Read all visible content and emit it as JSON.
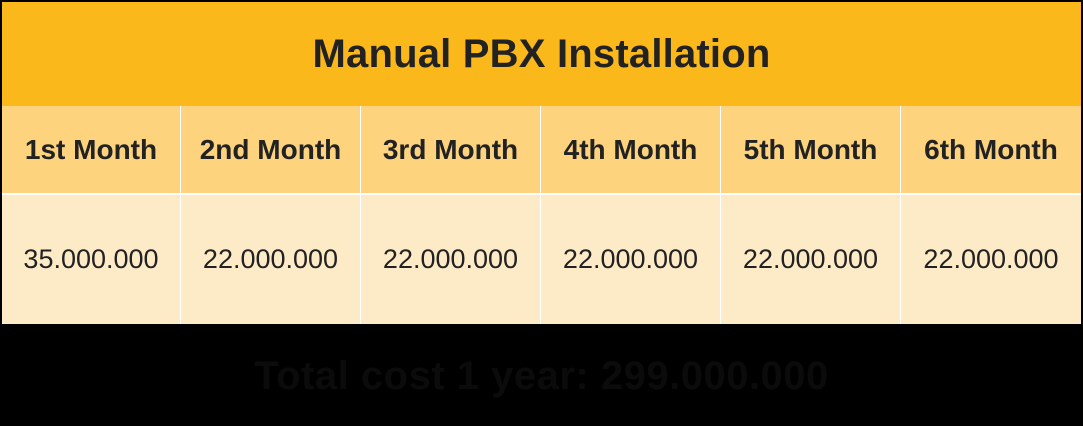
{
  "table": {
    "title": "Manual PBX Installation",
    "headers": [
      "1st Month",
      "2nd Month",
      "3rd Month",
      "4th Month",
      "5th Month",
      "6th Month"
    ],
    "values": [
      "35.000.000",
      "22.000.000",
      "22.000.000",
      "22.000.000",
      "22.000.000",
      "22.000.000"
    ]
  },
  "footer": {
    "text": "Total cost 1 year: 299.000.000"
  },
  "colors": {
    "title_background": "#fbb81b",
    "header_background": "#fdd37e",
    "value_background": "#fdeac6",
    "page_background": "#000000",
    "grid_lines": "#ffffff"
  }
}
